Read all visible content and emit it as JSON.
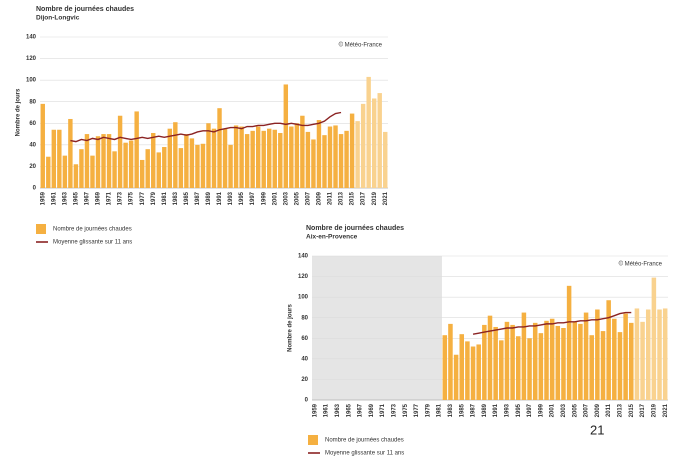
{
  "page_number": "21",
  "chart_data": [
    {
      "type": "bar",
      "title": "Nombre de journées chaudes",
      "subtitle": "Dijon-Longvic",
      "y_label": "Nombre de jours",
      "watermark": "© Météo-France",
      "categories": [
        "1959",
        null,
        "1961",
        null,
        "1963",
        null,
        "1965",
        null,
        "1967",
        null,
        "1969",
        null,
        "1971",
        null,
        "1973",
        null,
        "1975",
        null,
        "1977",
        null,
        "1979",
        null,
        "1981",
        null,
        "1983",
        null,
        "1985",
        null,
        "1987",
        null,
        "1989",
        null,
        "1991",
        null,
        "1993",
        null,
        "1995",
        null,
        "1997",
        null,
        "1999",
        null,
        "2001",
        null,
        "2003",
        null,
        "2005",
        null,
        "2007",
        null,
        "2009",
        null,
        "2011",
        null,
        "2013",
        null,
        "2015",
        null,
        "2017",
        null,
        "2019",
        null,
        "2021"
      ],
      "series": [
        {
          "name": "Nombre de journées chaudes",
          "type": "bar",
          "color": "#f5b041",
          "bar_colors": [
            "#f5b041",
            "#f5b041",
            "#f5b041",
            "#f5b041",
            "#f5b041",
            "#f5b041",
            "#f5b041",
            "#f5b041",
            "#f5b041",
            "#f5b041",
            "#f5b041",
            "#f5b041",
            "#f5b041",
            "#f5b041",
            "#f5b041",
            "#f5b041",
            "#f5b041",
            "#f5b041",
            "#f5b041",
            "#f5b041",
            "#f5b041",
            "#f5b041",
            "#f5b041",
            "#f5b041",
            "#f5b041",
            "#f5b041",
            "#f5b041",
            "#f5b041",
            "#f5b041",
            "#f5b041",
            "#f5b041",
            "#f5b041",
            "#f5b041",
            "#f5b041",
            "#f5b041",
            "#f5b041",
            "#f5b041",
            "#f5b041",
            "#f5b041",
            "#f5b041",
            "#f5b041",
            "#f5b041",
            "#f5b041",
            "#f5b041",
            "#f5b041",
            "#f5b041",
            "#f5b041",
            "#f5b041",
            "#f5b041",
            "#f5b041",
            "#f5b041",
            "#f5b041",
            "#f5b041",
            "#f5b041",
            "#f5b041",
            "#f5b041",
            "#f5b041",
            "#f9d28f",
            "#f9d28f",
            "#f9d28f",
            "#f9d28f",
            "#f9d28f",
            "#f9d28f"
          ],
          "values": [
            78,
            29,
            54,
            54,
            30,
            64,
            22,
            36,
            50,
            30,
            48,
            50,
            50,
            34,
            67,
            42,
            44,
            71,
            26,
            36,
            51,
            33,
            38,
            55,
            61,
            37,
            50,
            46,
            40,
            41,
            60,
            55,
            74,
            55,
            40,
            58,
            57,
            50,
            53,
            57,
            53,
            55,
            54,
            51,
            96,
            57,
            60,
            67,
            52,
            45,
            63,
            49,
            57,
            58,
            50,
            53,
            69,
            62,
            78,
            103,
            83,
            88,
            52
          ]
        },
        {
          "name": "Moyenne glissante sur 11 ans",
          "type": "line",
          "color": "#8b2323",
          "values": [
            null,
            null,
            null,
            null,
            null,
            44,
            43,
            45,
            44,
            46,
            45,
            47,
            46,
            45,
            47,
            46,
            45,
            46,
            47,
            46,
            47,
            48,
            47,
            48,
            49,
            50,
            49,
            50,
            52,
            53,
            53,
            52,
            54,
            55,
            56,
            56,
            55,
            57,
            57,
            58,
            58,
            59,
            60,
            60,
            59,
            60,
            59,
            58,
            58,
            59,
            60,
            62,
            66,
            69,
            70,
            null,
            null,
            null,
            null,
            null,
            null,
            null,
            null
          ]
        }
      ],
      "ylim": [
        0,
        140
      ],
      "yticks": [
        0,
        20,
        40,
        60,
        80,
        100,
        120,
        140
      ],
      "grid": true,
      "no_data_color": "#e5e5e5"
    },
    {
      "type": "bar",
      "title": "Nombre de journées chaudes",
      "subtitle": "Aix-en-Provence",
      "y_label": "Nombre de jours",
      "watermark": "© Météo-France",
      "categories": [
        "1959",
        null,
        "1961",
        null,
        "1963",
        null,
        "1965",
        null,
        "1967",
        null,
        "1969",
        null,
        "1971",
        null,
        "1973",
        null,
        "1975",
        null,
        "1977",
        null,
        "1979",
        null,
        "1981",
        null,
        "1983",
        null,
        "1985",
        null,
        "1987",
        null,
        "1989",
        null,
        "1991",
        null,
        "1993",
        null,
        "1995",
        null,
        "1997",
        null,
        "1999",
        null,
        "2001",
        null,
        "2003",
        null,
        "2005",
        null,
        "2007",
        null,
        "2009",
        null,
        "2011",
        null,
        "2013",
        null,
        "2015",
        null,
        "2017",
        null,
        "2019",
        null,
        "2021"
      ],
      "series": [
        {
          "name": "Nombre de journées chaudes",
          "type": "bar",
          "color": "#f5b041",
          "bar_colors": [
            "#f5b041",
            "#f5b041",
            "#f5b041",
            "#f5b041",
            "#f5b041",
            "#f5b041",
            "#f5b041",
            "#f5b041",
            "#f5b041",
            "#f5b041",
            "#f5b041",
            "#f5b041",
            "#f5b041",
            "#f5b041",
            "#f5b041",
            "#f5b041",
            "#f5b041",
            "#f5b041",
            "#f5b041",
            "#f5b041",
            "#f5b041",
            "#f5b041",
            "#f5b041",
            "#f5b041",
            "#f5b041",
            "#f5b041",
            "#f5b041",
            "#f5b041",
            "#f5b041",
            "#f5b041",
            "#f5b041",
            "#f5b041",
            "#f5b041",
            "#f5b041",
            "#f5b041",
            "#f5b041",
            "#f5b041",
            "#f5b041",
            "#f5b041",
            "#f5b041",
            "#f5b041",
            "#f5b041",
            "#f5b041",
            "#f5b041",
            "#f5b041",
            "#f5b041",
            "#f5b041",
            "#f5b041",
            "#f5b041",
            "#f5b041",
            "#f5b041",
            "#f5b041",
            "#f5b041",
            "#f5b041",
            "#f5b041",
            "#f5b041",
            "#f5b041",
            "#f9d28f",
            "#f9d28f",
            "#f9d28f",
            "#f9d28f",
            "#f9d28f",
            "#f9d28f"
          ],
          "values": [
            null,
            null,
            null,
            null,
            null,
            null,
            null,
            null,
            null,
            null,
            null,
            null,
            null,
            null,
            null,
            null,
            null,
            null,
            null,
            null,
            null,
            null,
            null,
            63,
            74,
            44,
            64,
            57,
            52,
            54,
            73,
            82,
            71,
            58,
            76,
            73,
            62,
            85,
            60,
            75,
            65,
            77,
            79,
            72,
            70,
            111,
            76,
            74,
            85,
            63,
            88,
            67,
            97,
            79,
            66,
            84,
            75,
            89,
            76,
            88,
            119,
            88,
            89
          ]
        },
        {
          "name": "Moyenne glissante sur 11 ans",
          "type": "line",
          "color": "#8b2323",
          "values": [
            null,
            null,
            null,
            null,
            null,
            null,
            null,
            null,
            null,
            null,
            null,
            null,
            null,
            null,
            null,
            null,
            null,
            null,
            null,
            null,
            null,
            null,
            null,
            null,
            null,
            null,
            null,
            null,
            64,
            65,
            66,
            67,
            68,
            69,
            70,
            70,
            71,
            71,
            72,
            72,
            73,
            74,
            74,
            75,
            75,
            76,
            76,
            77,
            77,
            78,
            78,
            79,
            80,
            82,
            84,
            85,
            85,
            null,
            null,
            null,
            null,
            null,
            null
          ]
        }
      ],
      "ylim": [
        0,
        140
      ],
      "yticks": [
        0,
        20,
        40,
        60,
        80,
        100,
        120,
        140
      ],
      "grid": true,
      "no_data_color": "#e5e5e5"
    }
  ]
}
